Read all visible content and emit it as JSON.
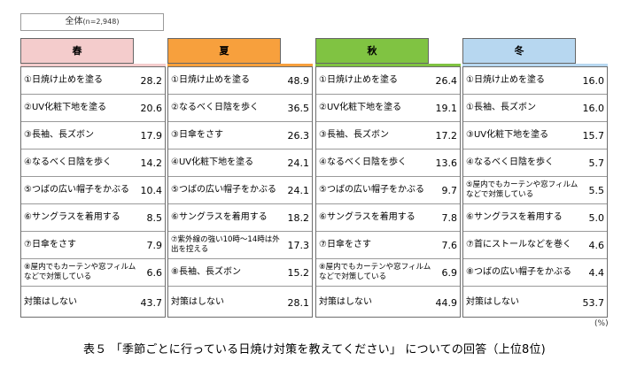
{
  "total": {
    "label": "全体",
    "n": "(n=2,948)"
  },
  "unit": "(%)",
  "caption": "表５ 「季節ごとに行っている日焼け対策を教えてください」 についての回答（上位8位)",
  "colors": {
    "spring": "#f4cccc",
    "summer": "#f7a03d",
    "autumn": "#80c342",
    "winter": "#b7d7f0"
  },
  "chart_data": {
    "type": "table",
    "unit": "%",
    "seasons": [
      {
        "name": "春",
        "rows": [
          {
            "label": "①日焼け止めを塗る",
            "value": "28.2"
          },
          {
            "label": "②UV化粧下地を塗る",
            "value": "20.6"
          },
          {
            "label": "③長袖、長ズボン",
            "value": "17.9"
          },
          {
            "label": "④なるべく日陰を歩く",
            "value": "14.2"
          },
          {
            "label": "⑤つばの広い帽子をかぶる",
            "value": "10.4"
          },
          {
            "label": "⑥サングラスを着用する",
            "value": "8.5"
          },
          {
            "label": "⑦日傘をさす",
            "value": "7.9"
          },
          {
            "label": "⑧屋内でもカーテンや窓フィルムなどで対策している",
            "value": "6.6"
          },
          {
            "label": "対策はしない",
            "value": "43.7"
          }
        ]
      },
      {
        "name": "夏",
        "rows": [
          {
            "label": "①日焼け止めを塗る",
            "value": "48.9"
          },
          {
            "label": "②なるべく日陰を歩く",
            "value": "36.5"
          },
          {
            "label": "③日傘をさす",
            "value": "26.3"
          },
          {
            "label": "④UV化粧下地を塗る",
            "value": "24.1"
          },
          {
            "label": "⑤つばの広い帽子をかぶる",
            "value": "24.1"
          },
          {
            "label": "⑥サングラスを着用する",
            "value": "18.2"
          },
          {
            "label": "⑦紫外線の強い10時～14時は外出を控える",
            "value": "17.3"
          },
          {
            "label": "⑧長袖、長ズボン",
            "value": "15.2"
          },
          {
            "label": "対策はしない",
            "value": "28.1"
          }
        ]
      },
      {
        "name": "秋",
        "rows": [
          {
            "label": "①日焼け止めを塗る",
            "value": "26.4"
          },
          {
            "label": "②UV化粧下地を塗る",
            "value": "19.1"
          },
          {
            "label": "③長袖、長ズボン",
            "value": "17.2"
          },
          {
            "label": "④なるべく日陰を歩く",
            "value": "13.6"
          },
          {
            "label": "⑤つばの広い帽子をかぶる",
            "value": "9.7"
          },
          {
            "label": "⑥サングラスを着用する",
            "value": "7.8"
          },
          {
            "label": "⑦日傘をさす",
            "value": "7.6"
          },
          {
            "label": "⑧屋内でもカーテンや窓フィルムなどで対策している",
            "value": "6.9"
          },
          {
            "label": "対策はしない",
            "value": "44.9"
          }
        ]
      },
      {
        "name": "冬",
        "rows": [
          {
            "label": "①日焼け止めを塗る",
            "value": "16.0"
          },
          {
            "label": "①長袖、長ズボン",
            "value": "16.0"
          },
          {
            "label": "③UV化粧下地を塗る",
            "value": "15.7"
          },
          {
            "label": "④なるべく日陰を歩く",
            "value": "5.7"
          },
          {
            "label": "⑤屋内でもカーテンや窓フィルムなどで対策している",
            "value": "5.5"
          },
          {
            "label": "⑥サングラスを着用する",
            "value": "5.0"
          },
          {
            "label": "⑦首にストールなどを巻く",
            "value": "4.6"
          },
          {
            "label": "⑧つばの広い帽子をかぶる",
            "value": "4.4"
          },
          {
            "label": "対策はしない",
            "value": "53.7"
          }
        ]
      }
    ]
  }
}
